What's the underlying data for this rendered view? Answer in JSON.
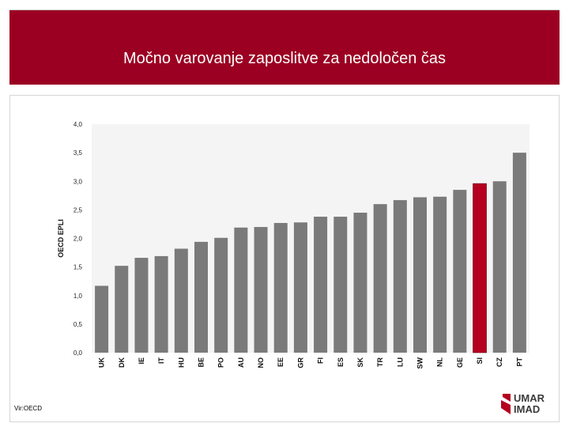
{
  "header": {
    "title": "Močno varovanje zaposlitve za nedoločen čas"
  },
  "source": "Vir:OECD",
  "logo": {
    "line1": "UMAR",
    "line2": "IMAD"
  },
  "colors": {
    "banner": "#9b0022",
    "bar": "#7a7a7a",
    "highlight": "#b5001f"
  },
  "chart_data": {
    "type": "bar",
    "ylabel": "OECD EPLI",
    "ylim": [
      0,
      4
    ],
    "yticks": [
      "0,0",
      "0,5",
      "1,0",
      "1,5",
      "2,0",
      "2,5",
      "3,0",
      "3,5",
      "4,0"
    ],
    "grid": false,
    "categories": [
      "UK",
      "DK",
      "IE",
      "IT",
      "HU",
      "BE",
      "PO",
      "AU",
      "NO",
      "EE",
      "GR",
      "FI",
      "ES",
      "SK",
      "TR",
      "LU",
      "SW",
      "NL",
      "GE",
      "SI",
      "CZ",
      "PT"
    ],
    "values": [
      1.17,
      1.52,
      1.66,
      1.69,
      1.82,
      1.94,
      2.01,
      2.19,
      2.2,
      2.27,
      2.28,
      2.38,
      2.38,
      2.45,
      2.6,
      2.67,
      2.72,
      2.73,
      2.85,
      2.96,
      3.0,
      3.5
    ],
    "highlight": "SI"
  }
}
